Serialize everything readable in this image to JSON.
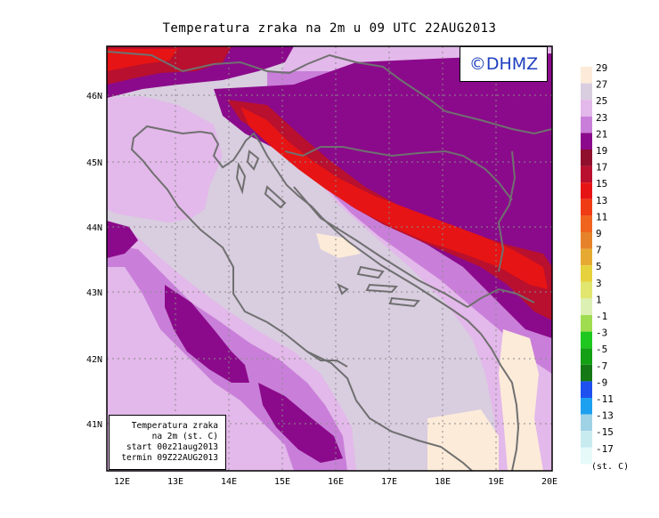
{
  "title": "Temperatura zraka na 2m u 09 UTC 22AUG2013",
  "brand": "©DHMZ",
  "info_box": {
    "line1": "Temperatura zraka",
    "line2": "na 2m (st. C)",
    "line3": "start 00z21aug2013",
    "line4": "termin 09Z22AUG2013"
  },
  "lon_labels": [
    "12E",
    "13E",
    "14E",
    "15E",
    "16E",
    "17E",
    "18E",
    "19E",
    "20E"
  ],
  "lat_labels": [
    "46N",
    "45N",
    "44N",
    "43N",
    "42N",
    "41N"
  ],
  "legend": {
    "labels": [
      "29",
      "27",
      "25",
      "23",
      "21",
      "19",
      "17",
      "15",
      "13",
      "11",
      "9",
      "7",
      "5",
      "3",
      "1",
      "-1",
      "-3",
      "-5",
      "-7",
      "-9",
      "-11",
      "-13",
      "-15",
      "-17"
    ],
    "colors": [
      "#fcebd9",
      "#d9cde0",
      "#e3b8ea",
      "#c97fd9",
      "#8b0a8b",
      "#8f0f2c",
      "#b8102e",
      "#e61414",
      "#f03c14",
      "#f0641e",
      "#e6822a",
      "#e6aa32",
      "#e6d23c",
      "#e1e66e",
      "#dcf0b4",
      "#a0dc50",
      "#1ec81e",
      "#14a014",
      "#147814",
      "#1e50f0",
      "#1ea0f0",
      "#a0d2e6",
      "#c8ebf0",
      "#e6fafa"
    ],
    "unit": "(st. C)"
  },
  "colors": {
    "coastline": "#707070",
    "grid": "#8a8a8a",
    "sea_warm": "#d9cde0",
    "land_warm": "#e3b8ea",
    "mid": "#c97fd9",
    "cool": "#8b0a8b",
    "cooler": "#b8102e",
    "coldest": "#e61414",
    "brand_text": "#1f3fbf"
  }
}
